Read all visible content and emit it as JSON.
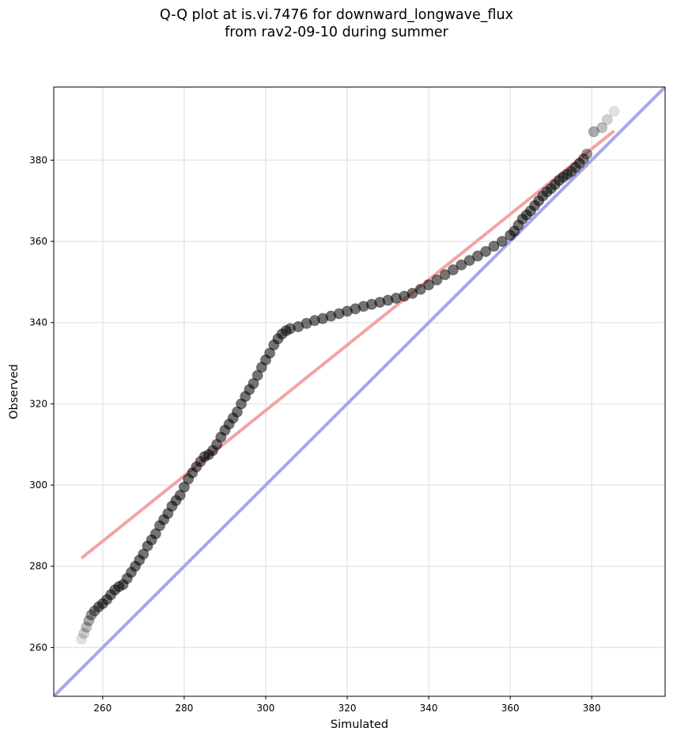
{
  "chart_data": {
    "type": "scatter",
    "title_lines": [
      "Q-Q plot at is.vi.7476 for downward_longwave_flux",
      "from rav2-09-10 during summer"
    ],
    "xlabel": "Simulated",
    "ylabel": "Observed",
    "xlim": [
      248,
      398
    ],
    "ylim": [
      248,
      398
    ],
    "x_ticks": [
      260,
      280,
      300,
      320,
      340,
      360,
      380
    ],
    "y_ticks": [
      260,
      280,
      300,
      320,
      340,
      360,
      380
    ],
    "grid": true,
    "series": [
      {
        "kind": "points",
        "color": "#000000",
        "points": [
          [
            254.8,
            262.1
          ],
          [
            255.4,
            263.5
          ],
          [
            256.0,
            265.0
          ],
          [
            256.6,
            266.6
          ],
          [
            257.2,
            268.0
          ],
          [
            258.0,
            269.0
          ],
          [
            259.0,
            270.0
          ],
          [
            260.0,
            270.8
          ],
          [
            261.0,
            271.8
          ],
          [
            262.0,
            273.0
          ],
          [
            263.0,
            274.2
          ],
          [
            264.0,
            275.0
          ],
          [
            265.0,
            275.5
          ],
          [
            266.0,
            277.0
          ],
          [
            267.0,
            278.5
          ],
          [
            268.0,
            280.0
          ],
          [
            269.0,
            281.5
          ],
          [
            270.0,
            283.0
          ],
          [
            271.0,
            285.0
          ],
          [
            272.0,
            286.5
          ],
          [
            273.0,
            288.0
          ],
          [
            274.0,
            290.0
          ],
          [
            275.0,
            291.5
          ],
          [
            276.0,
            293.0
          ],
          [
            277.0,
            294.8
          ],
          [
            278.0,
            296.2
          ],
          [
            279.0,
            297.5
          ],
          [
            280.0,
            299.5
          ],
          [
            281.0,
            301.5
          ],
          [
            282.0,
            303.0
          ],
          [
            283.0,
            304.5
          ],
          [
            284.0,
            305.8
          ],
          [
            285.0,
            307.0
          ],
          [
            286.0,
            307.5
          ],
          [
            287.0,
            308.5
          ],
          [
            288.0,
            310.0
          ],
          [
            289.0,
            311.8
          ],
          [
            290.0,
            313.5
          ],
          [
            291.0,
            315.0
          ],
          [
            292.0,
            316.5
          ],
          [
            293.0,
            318.0
          ],
          [
            294.0,
            320.0
          ],
          [
            295.0,
            321.8
          ],
          [
            296.0,
            323.5
          ],
          [
            297.0,
            325.0
          ],
          [
            298.0,
            327.0
          ],
          [
            299.0,
            329.0
          ],
          [
            300.0,
            330.8
          ],
          [
            301.0,
            332.5
          ],
          [
            302.0,
            334.5
          ],
          [
            303.0,
            336.0
          ],
          [
            304.0,
            337.2
          ],
          [
            305.0,
            338.0
          ],
          [
            306.0,
            338.5
          ],
          [
            308.0,
            339.0
          ],
          [
            310.0,
            339.8
          ],
          [
            312.0,
            340.5
          ],
          [
            314.0,
            341.0
          ],
          [
            316.0,
            341.6
          ],
          [
            318.0,
            342.2
          ],
          [
            320.0,
            342.8
          ],
          [
            322.0,
            343.4
          ],
          [
            324.0,
            344.0
          ],
          [
            326.0,
            344.5
          ],
          [
            328.0,
            345.0
          ],
          [
            330.0,
            345.5
          ],
          [
            332.0,
            346.0
          ],
          [
            334.0,
            346.5
          ],
          [
            336.0,
            347.2
          ],
          [
            338.0,
            348.2
          ],
          [
            340.0,
            349.3
          ],
          [
            342.0,
            350.5
          ],
          [
            344.0,
            351.8
          ],
          [
            346.0,
            353.0
          ],
          [
            348.0,
            354.2
          ],
          [
            350.0,
            355.3
          ],
          [
            352.0,
            356.4
          ],
          [
            354.0,
            357.5
          ],
          [
            356.0,
            358.8
          ],
          [
            358.0,
            360.0
          ],
          [
            360.0,
            361.5
          ],
          [
            361.0,
            362.5
          ],
          [
            362.0,
            364.0
          ],
          [
            363.0,
            365.5
          ],
          [
            364.0,
            366.5
          ],
          [
            365.0,
            367.5
          ],
          [
            366.0,
            368.8
          ],
          [
            367.0,
            370.0
          ],
          [
            368.0,
            371.2
          ],
          [
            369.0,
            372.2
          ],
          [
            370.0,
            373.0
          ],
          [
            371.0,
            374.0
          ],
          [
            372.0,
            375.0
          ],
          [
            373.0,
            375.8
          ],
          [
            374.0,
            376.5
          ],
          [
            375.0,
            377.2
          ],
          [
            376.0,
            378.2
          ],
          [
            377.0,
            379.2
          ],
          [
            378.0,
            380.3
          ],
          [
            378.8,
            381.5
          ],
          [
            380.5,
            387.0
          ],
          [
            382.5,
            388.0
          ],
          [
            383.8,
            390.0
          ],
          [
            385.5,
            392.0
          ]
        ]
      },
      {
        "kind": "line",
        "color": "#f4a3a3",
        "points": [
          [
            254.8,
            282.0
          ],
          [
            385.5,
            387.2
          ]
        ]
      },
      {
        "kind": "line",
        "color": "#a6a6ee",
        "points": [
          [
            248,
            248
          ],
          [
            398,
            398
          ]
        ]
      }
    ]
  }
}
